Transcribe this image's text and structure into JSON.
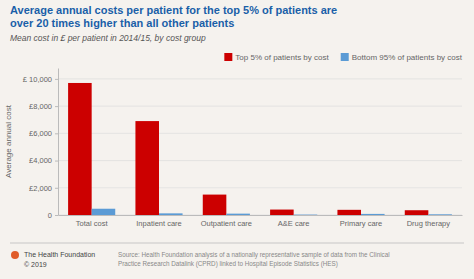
{
  "chart_data": {
    "type": "bar",
    "title": "Average annual costs per patient for the top 5% of patients are\nover 20 times higher than all other patients",
    "subtitle": "Mean cost in £ per patient in 2014/15, by cost group",
    "y_label": "Average annual cost",
    "categories": [
      "Total cost",
      "Inpatient care",
      "Outpatient care",
      "A&E care",
      "Primary care",
      "Drug therapy"
    ],
    "series": [
      {
        "name": "Top 5% of patients by cost",
        "color": "#cc0000",
        "values": [
          9700,
          6900,
          1500,
          400,
          380,
          350
        ]
      },
      {
        "name": "Bottom 95% of patients by cost",
        "color": "#5b9bd5",
        "values": [
          460,
          120,
          100,
          30,
          80,
          50
        ]
      }
    ],
    "ylim": [
      0,
      10800
    ],
    "yticks": [
      0,
      {
        "value": 2000,
        "label": "£2,000"
      },
      {
        "value": 4000,
        "label": "£4,000"
      },
      {
        "value": 6000,
        "label": "£6,000"
      },
      {
        "value": 8000,
        "label": "£8,000"
      },
      {
        "value": 10000,
        "label": "£ 10,000"
      }
    ],
    "grid": true,
    "legend": "upper right",
    "annotations": [
      "The Health Foundation\n© 2019",
      "Source: Health Foundation analysis of a nationally representative sample of data from the Clinical\nPractice Research Datalink (CPRD) linked to Hospital Episode Statistics (HES)"
    ]
  }
}
